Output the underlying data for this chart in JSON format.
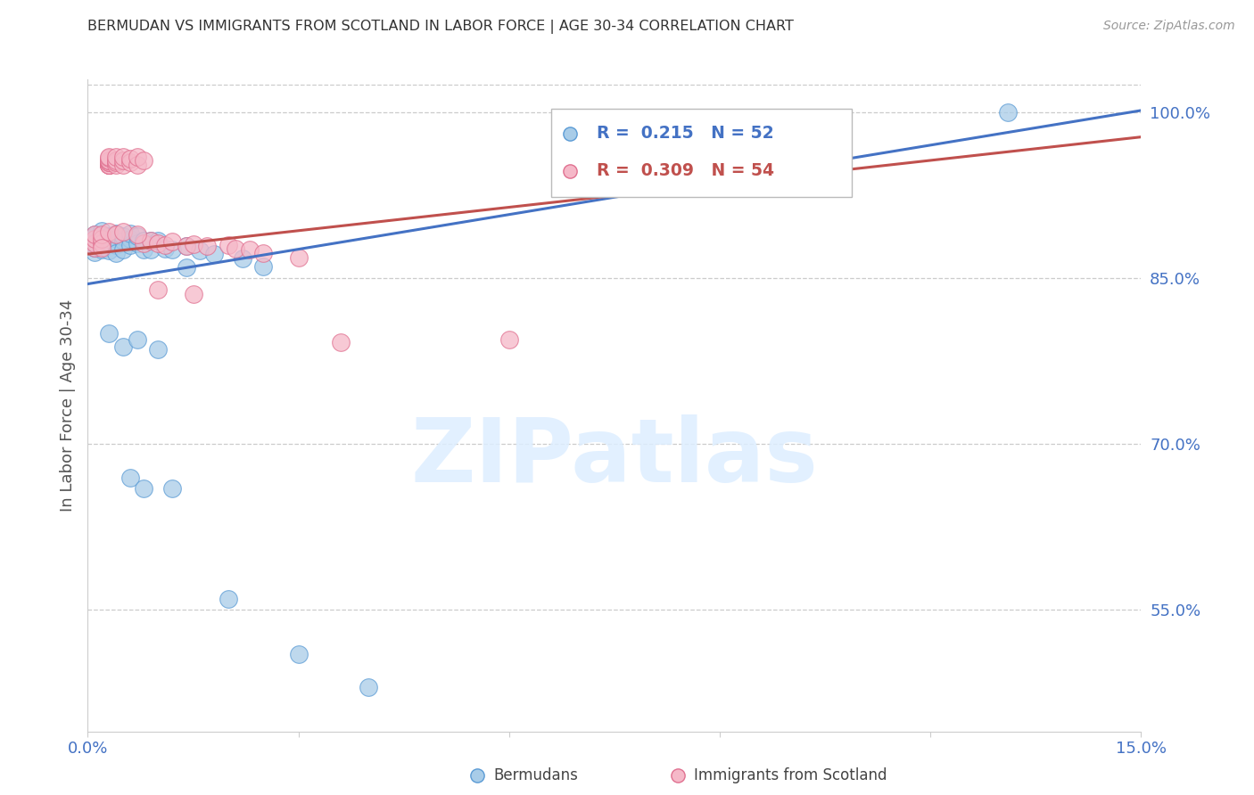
{
  "title": "BERMUDAN VS IMMIGRANTS FROM SCOTLAND IN LABOR FORCE | AGE 30-34 CORRELATION CHART",
  "source": "Source: ZipAtlas.com",
  "xlim": [
    0.0,
    0.15
  ],
  "ylim": [
    0.44,
    1.03
  ],
  "ylabel": "In Labor Force | Age 30-34",
  "legend_blue_rv": "0.215",
  "legend_blue_nv": "52",
  "legend_pink_rv": "0.309",
  "legend_pink_nv": "54",
  "blue_color": "#a8cce8",
  "pink_color": "#f5b8c8",
  "blue_edge_color": "#5b9bd5",
  "pink_edge_color": "#e07090",
  "blue_line_color": "#4472c4",
  "pink_line_color": "#c0504d",
  "right_yticks": [
    0.55,
    0.7,
    0.85,
    1.0
  ],
  "right_ylabels": [
    "55.0%",
    "70.0%",
    "85.0%",
    "100.0%"
  ],
  "xtick_positions": [
    0.0,
    0.03,
    0.06,
    0.09,
    0.12,
    0.15
  ],
  "xtick_labels": [
    "0.0%",
    "",
    "",
    "",
    "",
    "15.0%"
  ],
  "blue_trend_x": [
    0.0,
    0.15
  ],
  "blue_trend_y": [
    0.845,
    1.002
  ],
  "pink_trend_x": [
    0.0,
    0.15
  ],
  "pink_trend_y": [
    0.872,
    0.978
  ],
  "watermark_text": "ZIPatlas",
  "watermark_color": "#ddeeff",
  "bg_color": "#ffffff",
  "grid_color": "#cccccc",
  "label_color": "#4472c4",
  "legend_label_blue": "Bermudans",
  "legend_label_pink": "Immigrants from Scotland",
  "blue_scatter_x": [
    0.001,
    0.001,
    0.001,
    0.001,
    0.001,
    0.001,
    0.001,
    0.002,
    0.002,
    0.002,
    0.002,
    0.002,
    0.003,
    0.003,
    0.003,
    0.003,
    0.004,
    0.004,
    0.004,
    0.004,
    0.005,
    0.005,
    0.005,
    0.006,
    0.006,
    0.006,
    0.007,
    0.007,
    0.008,
    0.008,
    0.009,
    0.009,
    0.01,
    0.011,
    0.012,
    0.014,
    0.016,
    0.018,
    0.022,
    0.025,
    0.003,
    0.005,
    0.007,
    0.01,
    0.014,
    0.006,
    0.008,
    0.012,
    0.02,
    0.03,
    0.04,
    0.131
  ],
  "blue_scatter_y": [
    0.874,
    0.88,
    0.883,
    0.886,
    0.888,
    0.89,
    0.878,
    0.885,
    0.882,
    0.889,
    0.876,
    0.893,
    0.883,
    0.886,
    0.888,
    0.875,
    0.886,
    0.88,
    0.891,
    0.873,
    0.884,
    0.888,
    0.876,
    0.886,
    0.88,
    0.891,
    0.882,
    0.888,
    0.876,
    0.884,
    0.876,
    0.884,
    0.884,
    0.877,
    0.876,
    0.879,
    0.875,
    0.872,
    0.868,
    0.861,
    0.8,
    0.788,
    0.795,
    0.786,
    0.86,
    0.67,
    0.66,
    0.66,
    0.56,
    0.51,
    0.48,
    1.0
  ],
  "pink_scatter_x": [
    0.001,
    0.001,
    0.001,
    0.001,
    0.002,
    0.002,
    0.002,
    0.002,
    0.003,
    0.003,
    0.003,
    0.003,
    0.003,
    0.003,
    0.003,
    0.003,
    0.003,
    0.003,
    0.003,
    0.003,
    0.003,
    0.004,
    0.004,
    0.004,
    0.004,
    0.005,
    0.005,
    0.005,
    0.006,
    0.006,
    0.007,
    0.007,
    0.008,
    0.008,
    0.009,
    0.01,
    0.011,
    0.012,
    0.014,
    0.015,
    0.017,
    0.02,
    0.021,
    0.023,
    0.025,
    0.03,
    0.003,
    0.004,
    0.005,
    0.007,
    0.01,
    0.015,
    0.036,
    0.06
  ],
  "pink_scatter_y": [
    0.878,
    0.882,
    0.886,
    0.89,
    0.882,
    0.886,
    0.89,
    0.878,
    0.953,
    0.953,
    0.953,
    0.953,
    0.953,
    0.955,
    0.955,
    0.955,
    0.957,
    0.957,
    0.957,
    0.959,
    0.96,
    0.953,
    0.955,
    0.957,
    0.96,
    0.953,
    0.957,
    0.96,
    0.955,
    0.958,
    0.953,
    0.96,
    0.957,
    0.882,
    0.884,
    0.882,
    0.88,
    0.883,
    0.879,
    0.881,
    0.879,
    0.88,
    0.877,
    0.876,
    0.873,
    0.869,
    0.892,
    0.89,
    0.892,
    0.89,
    0.84,
    0.836,
    0.792,
    0.795
  ]
}
